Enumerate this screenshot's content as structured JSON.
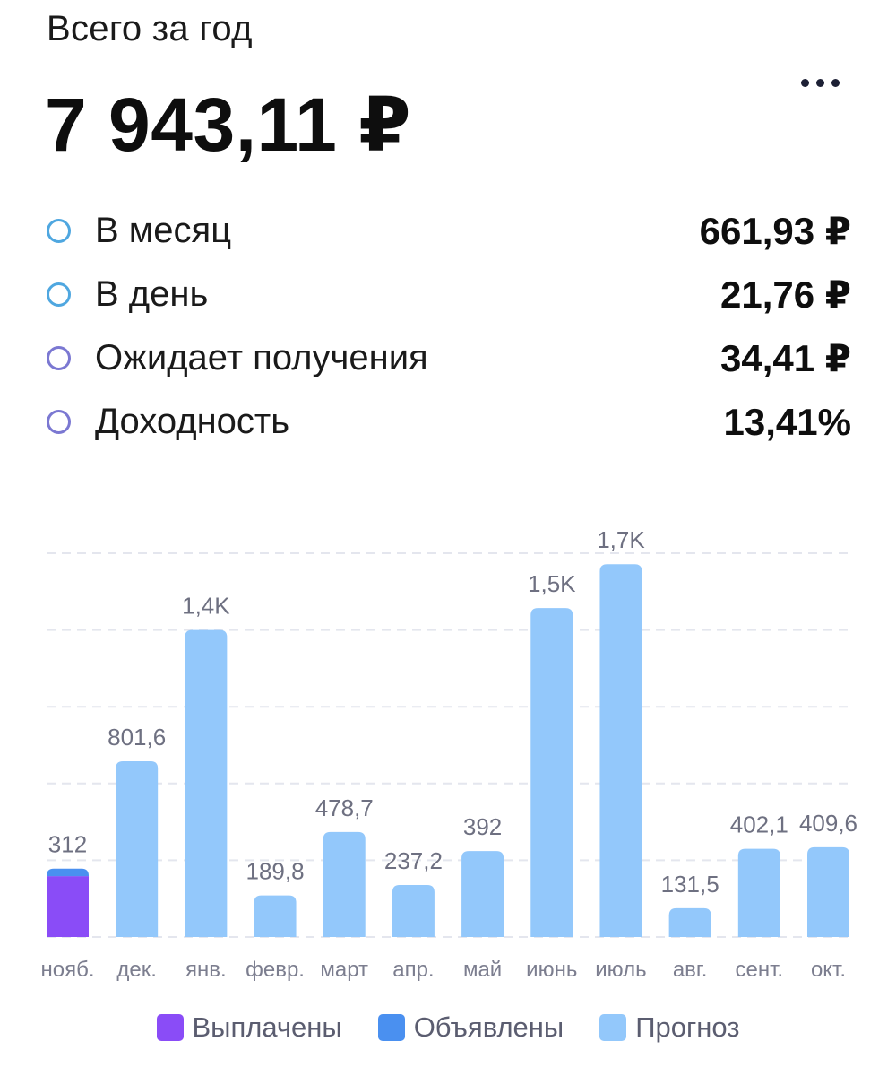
{
  "header": {
    "title": "Всего за год",
    "total": "7 943,11 ₽",
    "more_icon": "more-horizontal-icon"
  },
  "stats": [
    {
      "label": "В месяц",
      "value": "661,93 ₽",
      "color": "#4fa7e0"
    },
    {
      "label": "В день",
      "value": "21,76 ₽",
      "color": "#4fa7e0"
    },
    {
      "label": "Ожидает получения",
      "value": "34,41 ₽",
      "color": "#7b78d2"
    },
    {
      "label": "Доходность",
      "value": "13,41%",
      "color": "#7b78d2"
    }
  ],
  "chart_data": {
    "type": "bar",
    "stacked": true,
    "categories": [
      "нояб.",
      "дек.",
      "янв.",
      "февр.",
      "март",
      "апр.",
      "май",
      "июнь",
      "июль",
      "авг.",
      "сент.",
      "окт."
    ],
    "series": [
      {
        "name": "Выплачены",
        "color": "#8a4cf7",
        "values": [
          277.6,
          0,
          0,
          0,
          0,
          0,
          0,
          0,
          0,
          0,
          0,
          0
        ]
      },
      {
        "name": "Объявлены",
        "color": "#4a90f0",
        "values": [
          34.4,
          0,
          0,
          0,
          0,
          0,
          0,
          0,
          0,
          0,
          0,
          0
        ]
      },
      {
        "name": "Прогноз",
        "color": "#93c8fb",
        "values": [
          0,
          801.6,
          1400,
          189.8,
          478.7,
          237.2,
          392,
          1500,
          1700,
          131.5,
          402.1,
          409.6
        ]
      }
    ],
    "data_labels": [
      "312",
      "801,6",
      "1,4K",
      "189,8",
      "478,7",
      "237,2",
      "392",
      "1,5K",
      "1,7K",
      "131,5",
      "402,1",
      "409,6"
    ],
    "ylim": [
      0,
      1750
    ],
    "grid": true,
    "legend": "bottom"
  }
}
